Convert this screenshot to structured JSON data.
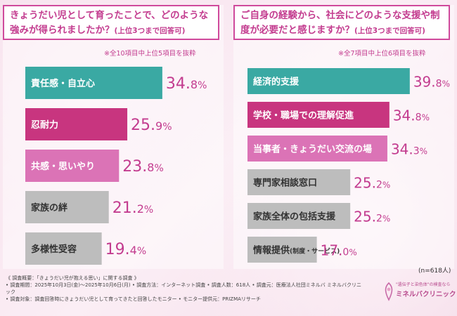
{
  "chart_data": [
    {
      "type": "bar",
      "orientation": "horizontal",
      "title": "きょうだい児として育ったことで、どのような強みが得られましたか？",
      "title_suffix": "(上位3つまで回答可)",
      "note": "※全10項目中上位5項目を抜粋",
      "categories": [
        "責任感・自立心",
        "忍耐力",
        "共感・思いやり",
        "家族の絆",
        "多様性受容"
      ],
      "values": [
        34.8,
        25.9,
        23.8,
        21.2,
        19.4
      ],
      "unit": "%",
      "xlim": [
        0,
        100
      ],
      "colors": [
        "#3aa9a3",
        "#c8357f",
        "#db73b6",
        "#bdbdbd",
        "#bdbdbd"
      ],
      "label_colors": [
        "#ffffff",
        "#ffffff",
        "#ffffff",
        "#333333",
        "#333333"
      ]
    },
    {
      "type": "bar",
      "orientation": "horizontal",
      "title": "ご自身の経験から、社会にどのような支援や制度が必要だと感じますか？",
      "title_suffix": "(上位3つまで回答可)",
      "note": "※全7項目中上位6項目を抜粋",
      "categories": [
        "経済的支援",
        "学校・職場での理解促進",
        "当事者・きょうだい交流の場",
        "専門家相談窓口",
        "家族全体の包括支援",
        "情報提供"
      ],
      "category_suffixes": [
        "",
        "",
        "",
        "",
        "",
        "(制度・サービス)"
      ],
      "values": [
        39.8,
        34.8,
        34.3,
        25.2,
        25.2,
        17.0
      ],
      "unit": "%",
      "xlim": [
        0,
        100
      ],
      "colors": [
        "#3aa9a3",
        "#c8357f",
        "#db73b6",
        "#bdbdbd",
        "#bdbdbd",
        "#bdbdbd"
      ],
      "label_colors": [
        "#ffffff",
        "#ffffff",
        "#ffffff",
        "#333333",
        "#333333",
        "#333333"
      ]
    }
  ],
  "sample_note": "(n=618人)",
  "footer": {
    "line1": "《 調査概要：「きょうだい児が抱える思い」に関する調査 》",
    "line2": "• 調査期間：2025年10月3日(金)～2025年10月6日(月)  • 調査方法：インターネット調査  • 調査人数：618人  • 調査元：医療法人社団ミネルバ ミネルバクリニック",
    "line3": "• 調査対象：調査回答時にきょうだい児として育ってきたと回答したモニター    • モニター提供元：PRIZMAリサーチ"
  },
  "logo": {
    "slogan": "\"遺伝子と染色体\"の検査なら",
    "name": "ミネルバクリニック"
  },
  "value_color": "#c33c8f"
}
